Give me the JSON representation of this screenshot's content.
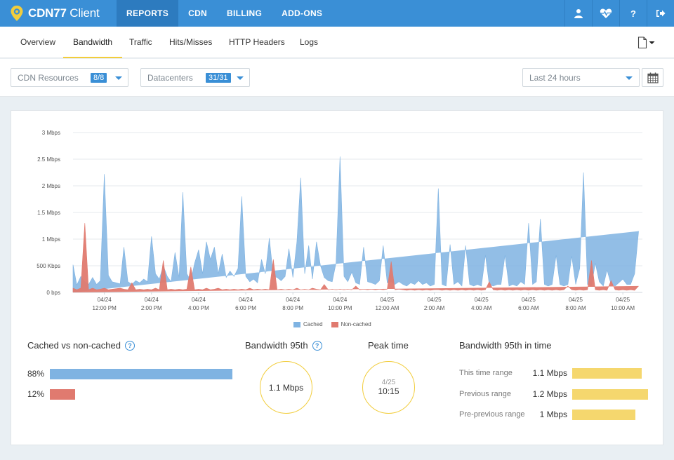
{
  "app": {
    "brand_bold": "CDN77",
    "brand_light": "Client"
  },
  "nav": [
    "REPORTS",
    "CDN",
    "BILLING",
    "ADD-ONS"
  ],
  "top_icons": [
    "user-icon",
    "health-icon",
    "help-icon",
    "logout-icon"
  ],
  "subnav": [
    "Overview",
    "Bandwidth",
    "Traffic",
    "Hits/Misses",
    "HTTP Headers",
    "Logs"
  ],
  "active_subnav": "Bandwidth",
  "filters": {
    "resources": {
      "label": "CDN Resources",
      "count": "8/8"
    },
    "datacenters": {
      "label": "Datacenters",
      "count": "31/31"
    },
    "range": {
      "label": "Last 24 hours"
    }
  },
  "colors": {
    "accent": "#3a8fd6",
    "cached": "#7fb3e2",
    "noncached": "#e07a6f",
    "highlight": "#f2cd3c"
  },
  "chart_data": {
    "type": "area",
    "yticks": [
      "0 bps",
      "500 Kbps",
      "1 Mbps",
      "1.5 Mbps",
      "2 Mbps",
      "2.5 Mbps",
      "3 Mbps"
    ],
    "ylim_mbps": [
      0,
      3
    ],
    "xticks": [
      [
        "04/24",
        "12:00 PM"
      ],
      [
        "04/24",
        "2:00 PM"
      ],
      [
        "04/24",
        "4:00 PM"
      ],
      [
        "04/24",
        "6:00 PM"
      ],
      [
        "04/24",
        "8:00 PM"
      ],
      [
        "04/24",
        "10:00 PM"
      ],
      [
        "04/25",
        "12:00 AM"
      ],
      [
        "04/25",
        "2:00 AM"
      ],
      [
        "04/25",
        "4:00 AM"
      ],
      [
        "04/25",
        "6:00 AM"
      ],
      [
        "04/25",
        "8:00 AM"
      ],
      [
        "04/25",
        "10:00 AM"
      ]
    ],
    "series": [
      {
        "name": "Cached",
        "hours": [
          10.67,
          10.83,
          11.0,
          11.17,
          11.33,
          11.5,
          11.67,
          11.83,
          12.0,
          12.17,
          12.33,
          12.5,
          12.67,
          12.83,
          13.0,
          13.17,
          13.33,
          13.5,
          13.67,
          13.83,
          14.0,
          14.17,
          14.33,
          14.5,
          14.67,
          14.83,
          15.0,
          15.17,
          15.33,
          15.5,
          15.67,
          15.83,
          16.0,
          16.17,
          16.33,
          16.5,
          16.67,
          16.83,
          17.0,
          17.17,
          17.33,
          17.5,
          17.67,
          17.83,
          18.0,
          18.17,
          18.33,
          18.5,
          18.67,
          18.83,
          19.0,
          19.17,
          19.33,
          19.5,
          19.67,
          19.83,
          20.0,
          20.17,
          20.33,
          20.5,
          20.67,
          20.83,
          21.0,
          21.17,
          21.33,
          21.5,
          21.67,
          21.83,
          22.0,
          22.17,
          22.33,
          22.5,
          22.67,
          22.83,
          23.0,
          23.17,
          23.33,
          23.5,
          23.67,
          23.83,
          24.0,
          24.17,
          24.33,
          24.5,
          24.67,
          24.83,
          25.0,
          25.17,
          25.33,
          25.5,
          25.67,
          25.83,
          26.0,
          26.17,
          26.33,
          26.5,
          26.67,
          26.83,
          27.0,
          27.17,
          27.33,
          27.5,
          27.67,
          27.83,
          28.0,
          28.17,
          28.33,
          28.5,
          28.67,
          28.83,
          29.0,
          29.17,
          29.33,
          29.5,
          29.67,
          29.83,
          30.0,
          30.17,
          30.33,
          30.5,
          30.67,
          30.83,
          31.0,
          31.17,
          31.33,
          31.5,
          31.67,
          31.83,
          32.0,
          32.17,
          32.33,
          32.5,
          32.67,
          32.83,
          33.0,
          33.17,
          33.33,
          33.5,
          33.67,
          33.83,
          34.0,
          34.17,
          34.33,
          34.5,
          34.67,
          34.83
        ],
        "mbps": [
          0.52,
          0.14,
          0.3,
          0.2,
          0.15,
          0.28,
          0.15,
          0.22,
          2.22,
          0.32,
          0.2,
          0.18,
          0.16,
          0.85,
          0.2,
          0.15,
          0.22,
          0.18,
          0.25,
          0.2,
          1.05,
          0.35,
          0.25,
          0.5,
          0.3,
          0.2,
          0.75,
          0.28,
          1.88,
          0.35,
          0.22,
          0.55,
          0.8,
          0.35,
          0.95,
          0.62,
          0.85,
          0.35,
          0.72,
          0.28,
          0.4,
          0.3,
          0.45,
          1.8,
          0.3,
          0.2,
          0.25,
          0.18,
          0.62,
          0.35,
          1.02,
          0.3,
          0.28,
          0.22,
          0.3,
          0.82,
          0.28,
          0.95,
          2.15,
          0.35,
          0.88,
          0.25,
          0.95,
          0.5,
          0.28,
          0.22,
          0.2,
          0.55,
          2.55,
          0.3,
          0.2,
          0.38,
          0.18,
          0.15,
          0.85,
          0.2,
          0.18,
          0.15,
          0.22,
          0.88,
          0.18,
          0.2,
          0.15,
          0.2,
          0.15,
          0.12,
          0.18,
          0.15,
          0.22,
          0.15,
          0.18,
          0.12,
          0.15,
          1.95,
          0.15,
          0.12,
          0.9,
          0.15,
          0.2,
          0.12,
          0.88,
          0.15,
          0.12,
          0.15,
          0.12,
          0.7,
          0.15,
          0.12,
          0.15,
          0.15,
          0.7,
          0.12,
          0.15,
          0.12,
          0.2,
          0.15,
          1.3,
          0.15,
          0.2,
          1.38,
          0.15,
          0.12,
          0.15,
          0.7,
          0.15,
          0.12,
          0.15,
          0.68,
          0.15,
          0.45,
          2.25,
          0.15,
          0.12,
          0.55,
          0.2,
          0.12,
          0.42,
          0.15,
          0.12,
          0.18,
          0.25,
          0.15,
          0.15,
          0.35,
          1.15
        ]
      },
      {
        "name": "Non-cached",
        "hours": [
          10.67,
          10.83,
          11.0,
          11.17,
          11.33,
          11.5,
          11.67,
          11.83,
          12.0,
          12.17,
          12.33,
          12.5,
          12.67,
          12.83,
          13.0,
          13.17,
          13.33,
          13.5,
          13.67,
          13.83,
          14.0,
          14.17,
          14.33,
          14.5,
          14.67,
          14.83,
          15.0,
          15.17,
          15.33,
          15.5,
          15.67,
          15.83,
          16.0,
          16.17,
          16.33,
          16.5,
          16.67,
          16.83,
          17.0,
          17.17,
          17.33,
          17.5,
          17.67,
          17.83,
          18.0,
          18.17,
          18.33,
          18.5,
          18.67,
          18.83,
          19.0,
          19.17,
          19.33,
          19.5,
          19.67,
          19.83,
          20.0,
          20.17,
          20.33,
          20.5,
          20.67,
          20.83,
          21.0,
          21.17,
          21.33,
          21.5,
          21.67,
          21.83,
          22.0,
          22.17,
          22.33,
          22.5,
          22.67,
          22.83,
          23.0,
          23.17,
          23.33,
          23.5,
          23.67,
          23.83,
          24.0,
          24.17,
          24.33,
          24.5,
          24.67,
          24.83,
          25.0,
          25.17,
          25.33,
          25.5,
          25.67,
          25.83,
          26.0,
          26.17,
          26.33,
          26.5,
          26.67,
          26.83,
          27.0,
          27.17,
          27.33,
          27.5,
          27.67,
          27.83,
          28.0,
          28.17,
          28.33,
          28.5,
          28.67,
          28.83,
          29.0,
          29.17,
          29.33,
          29.5,
          29.67,
          29.83,
          30.0,
          30.17,
          30.33,
          30.5,
          30.67,
          30.83,
          31.0,
          31.17,
          31.33,
          31.5,
          31.67,
          31.83,
          32.0,
          32.17,
          32.33,
          32.5,
          32.67,
          32.83,
          33.0,
          33.17,
          33.33,
          33.5,
          33.67,
          33.83,
          34.0,
          34.17,
          34.33,
          34.5,
          34.67,
          34.83
        ],
        "mbps": [
          0.08,
          0.05,
          0.08,
          1.3,
          0.05,
          0.08,
          0.05,
          0.06,
          0.08,
          0.05,
          0.06,
          0.07,
          0.08,
          0.06,
          0.05,
          0.18,
          0.05,
          0.06,
          0.05,
          0.06,
          0.05,
          0.08,
          0.05,
          0.6,
          0.05,
          0.06,
          0.05,
          0.06,
          0.05,
          0.06,
          0.48,
          0.05,
          0.06,
          0.05,
          0.08,
          0.05,
          0.06,
          0.08,
          0.05,
          0.06,
          0.05,
          0.06,
          0.05,
          0.06,
          0.05,
          0.08,
          0.05,
          0.06,
          0.05,
          0.06,
          0.05,
          0.62,
          0.05,
          0.06,
          0.05,
          0.06,
          0.05,
          0.08,
          0.05,
          0.06,
          0.05,
          0.08,
          0.06,
          0.05,
          0.15,
          0.05,
          0.06,
          0.05,
          0.06,
          0.05,
          0.06,
          0.05,
          0.12,
          0.05,
          0.06,
          0.05,
          0.06,
          0.05,
          0.06,
          0.05,
          0.06,
          0.58,
          0.05,
          0.06,
          0.05,
          0.04,
          0.05,
          0.04,
          0.05,
          0.04,
          0.05,
          0.04,
          0.05,
          0.05,
          0.04,
          0.05,
          0.04,
          0.05,
          0.04,
          0.05,
          0.04,
          0.05,
          0.04,
          0.05,
          0.04,
          0.05,
          0.2,
          0.05,
          0.04,
          0.05,
          0.04,
          0.05,
          0.04,
          0.05,
          0.04,
          0.05,
          0.04,
          0.05,
          0.04,
          0.05,
          0.04,
          0.05,
          0.04,
          0.05,
          0.04,
          0.05,
          0.12,
          0.05,
          0.04,
          0.05,
          0.04,
          0.05,
          0.6,
          0.05,
          0.04,
          0.05,
          0.04,
          0.22,
          0.05,
          0.04,
          0.05,
          0.04,
          0.05,
          0.04,
          0.12
        ]
      }
    ],
    "legend": [
      "Cached",
      "Non-cached"
    ]
  },
  "summary": {
    "cached_title": "Cached vs non-cached",
    "cached_pct": "88%",
    "cached_value": 0.88,
    "noncached_pct": "12%",
    "noncached_value": 0.12,
    "bw95_title": "Bandwidth 95th",
    "bw95_value": "1.1 Mbps",
    "peak_title": "Peak time",
    "peak_date": "4/25",
    "peak_time": "10:15",
    "bw95_time_title": "Bandwidth 95th in time",
    "ranges": [
      {
        "label": "This time range",
        "value": "1.1 Mbps",
        "mbps": 1.1
      },
      {
        "label": "Previous range",
        "value": "1.2 Mbps",
        "mbps": 1.2
      },
      {
        "label": "Pre-previous range",
        "value": "1 Mbps",
        "mbps": 1.0
      }
    ]
  }
}
